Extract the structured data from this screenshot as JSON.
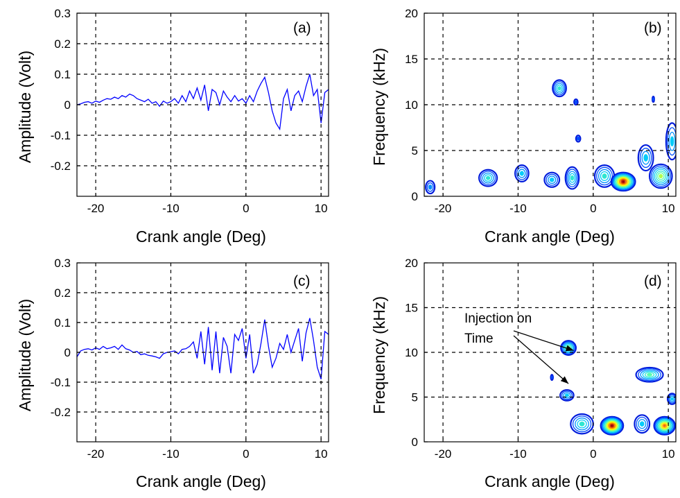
{
  "chart_data": [
    {
      "panel_label": "(a)",
      "type": "line",
      "xlabel": "Crank angle (Deg)",
      "ylabel": "Amplitude (Volt)",
      "xlim": [
        -22.5,
        11
      ],
      "ylim": [
        -0.3,
        0.3
      ],
      "x_ticks": [
        -20,
        -10,
        0,
        10
      ],
      "y_ticks": [
        -0.2,
        -0.1,
        0,
        0.1,
        0.2,
        0.3
      ],
      "x_tick_labels": [
        "-20",
        "-10",
        "0",
        "10"
      ],
      "y_tick_labels": [
        "-0.2",
        "-0.1",
        "0",
        "0.1",
        "0.2",
        "0.3"
      ],
      "grid": true,
      "line_color": "#0000ff",
      "series": [
        {
          "x": [
            -22.5,
            -22,
            -21.5,
            -21,
            -20.5,
            -20,
            -19.5,
            -19,
            -18.5,
            -18,
            -17.5,
            -17,
            -16.5,
            -16,
            -15.5,
            -15,
            -14.5,
            -14,
            -13.5,
            -13,
            -12.5,
            -12,
            -11.5,
            -11,
            -10.5,
            -10,
            -9.5,
            -9,
            -8.5,
            -8,
            -7.5,
            -7,
            -6.5,
            -6,
            -5.5,
            -5,
            -4.5,
            -4,
            -3.5,
            -3,
            -2.5,
            -2,
            -1.5,
            -1,
            -0.5,
            0,
            0.5,
            1,
            1.5,
            2,
            2.5,
            3,
            3.5,
            4,
            4.5,
            5,
            5.5,
            6,
            6.5,
            7,
            7.5,
            8,
            8.5,
            9,
            9.5,
            10,
            10.5,
            11
          ],
          "y": [
            0,
            0.003,
            0.008,
            0.01,
            0.005,
            0.012,
            0.008,
            0.015,
            0.02,
            0.018,
            0.025,
            0.02,
            0.03,
            0.025,
            0.035,
            0.03,
            0.02,
            0.015,
            0.01,
            0.018,
            0.005,
            0.01,
            -0.005,
            0.012,
            0.005,
            0.01,
            0.02,
            0.005,
            0.03,
            0.01,
            0.045,
            0.02,
            0.055,
            0.015,
            0.065,
            -0.02,
            0.05,
            0.04,
            0,
            0.045,
            0.025,
            0.01,
            0.03,
            0.012,
            0.02,
            0.005,
            0.03,
            0.01,
            0.045,
            0.07,
            0.09,
            0.04,
            -0.02,
            -0.06,
            -0.08,
            0.02,
            0.05,
            -0.02,
            0.03,
            0.045,
            0.01,
            0.06,
            0.1,
            0.03,
            0.05,
            -0.06,
            0.04,
            0.05
          ]
        }
      ]
    },
    {
      "panel_label": "(b)",
      "type": "heatmap",
      "xlabel": "Crank angle (Deg)",
      "ylabel": "Frequency (kHz)",
      "xlim": [
        -22.5,
        11
      ],
      "ylim": [
        0,
        20
      ],
      "x_ticks": [
        -20,
        -10,
        0,
        10
      ],
      "y_ticks": [
        0,
        5,
        10,
        15,
        20
      ],
      "x_tick_labels": [
        "-20",
        "-10",
        "0",
        "10"
      ],
      "y_tick_labels": [
        "0",
        "5",
        "10",
        "15",
        "20"
      ],
      "grid": true,
      "blobs": [
        {
          "x": 4,
          "y": 1.6,
          "sx": 1.6,
          "sy": 1.0,
          "peak": 1.0
        },
        {
          "x": 9,
          "y": 2.2,
          "sx": 1.5,
          "sy": 1.3,
          "peak": 0.55
        },
        {
          "x": 1.5,
          "y": 2.2,
          "sx": 1.3,
          "sy": 1.2,
          "peak": 0.4
        },
        {
          "x": 7,
          "y": 4.2,
          "sx": 1.0,
          "sy": 1.4,
          "peak": 0.3
        },
        {
          "x": 10.5,
          "y": 6,
          "sx": 0.8,
          "sy": 2.0,
          "peak": 0.3
        },
        {
          "x": -2.8,
          "y": 2,
          "sx": 0.9,
          "sy": 1.2,
          "peak": 0.45
        },
        {
          "x": -5.5,
          "y": 1.8,
          "sx": 1.0,
          "sy": 0.8,
          "peak": 0.32
        },
        {
          "x": -9.5,
          "y": 2.5,
          "sx": 0.9,
          "sy": 0.9,
          "peak": 0.3
        },
        {
          "x": -14,
          "y": 2,
          "sx": 1.2,
          "sy": 0.9,
          "peak": 0.4
        },
        {
          "x": -4.5,
          "y": 11.8,
          "sx": 0.9,
          "sy": 0.9,
          "peak": 0.45
        },
        {
          "x": -2.3,
          "y": 10.3,
          "sx": 0.25,
          "sy": 0.3,
          "peak": 0.2
        },
        {
          "x": -2.0,
          "y": 6.3,
          "sx": 0.3,
          "sy": 0.35,
          "peak": 0.2
        },
        {
          "x": -21.7,
          "y": 1.0,
          "sx": 0.6,
          "sy": 0.7,
          "peak": 0.22
        },
        {
          "x": 8.0,
          "y": 10.6,
          "sx": 0.12,
          "sy": 0.3,
          "peak": 0.17
        }
      ]
    },
    {
      "panel_label": "(c)",
      "type": "line",
      "xlabel": "Crank angle (Deg)",
      "ylabel": "Amplitude (Volt)",
      "xlim": [
        -22.5,
        11
      ],
      "ylim": [
        -0.3,
        0.3
      ],
      "x_ticks": [
        -20,
        -10,
        0,
        10
      ],
      "y_ticks": [
        -0.2,
        -0.1,
        0,
        0.1,
        0.2,
        0.3
      ],
      "x_tick_labels": [
        "-20",
        "-10",
        "0",
        "10"
      ],
      "y_tick_labels": [
        "-0.2",
        "-0.1",
        "0",
        "0.1",
        "0.2",
        "0.3"
      ],
      "grid": true,
      "line_color": "#0000ff",
      "series": [
        {
          "x": [
            -22.5,
            -22,
            -21.5,
            -21,
            -20.5,
            -20,
            -19.5,
            -19,
            -18.5,
            -18,
            -17.5,
            -17,
            -16.5,
            -16,
            -15.5,
            -15,
            -14.5,
            -14,
            -13.5,
            -13,
            -12.5,
            -12,
            -11.5,
            -11,
            -10.5,
            -10,
            -9.5,
            -9,
            -8.5,
            -8,
            -7.5,
            -7,
            -6.5,
            -6,
            -5.5,
            -5,
            -4.5,
            -4,
            -3.5,
            -3,
            -2.5,
            -2,
            -1.5,
            -1,
            -0.5,
            0,
            0.5,
            1,
            1.5,
            2,
            2.5,
            3,
            3.5,
            4,
            4.5,
            5,
            5.5,
            6,
            6.5,
            7,
            7.5,
            8,
            8.5,
            9,
            9.5,
            10,
            10.5,
            11
          ],
          "y": [
            -0.015,
            0.005,
            0.01,
            0.012,
            0.008,
            0.015,
            0.01,
            0.02,
            0.012,
            0.015,
            0.02,
            0.01,
            0.025,
            0.012,
            0.008,
            0,
            0.003,
            -0.008,
            -0.005,
            -0.01,
            -0.012,
            -0.015,
            -0.02,
            -0.005,
            0,
            0.002,
            0.005,
            -0.005,
            0.01,
            0.012,
            0.02,
            0.035,
            -0.02,
            0.07,
            -0.04,
            0.085,
            -0.06,
            0.07,
            -0.07,
            0.05,
            0.02,
            -0.07,
            0.06,
            0.04,
            0.08,
            -0.02,
            0.06,
            -0.07,
            -0.04,
            0.03,
            0.11,
            0.02,
            -0.05,
            -0.02,
            0.03,
            0.01,
            0.06,
            0,
            0.04,
            0.08,
            -0.03,
            0.065,
            0.115,
            0.04,
            -0.05,
            -0.09,
            0.07,
            0.06
          ]
        }
      ]
    },
    {
      "panel_label": "(d)",
      "type": "heatmap",
      "xlabel": "Crank angle (Deg)",
      "ylabel": "Frequency (kHz)",
      "xlim": [
        -22.5,
        11
      ],
      "ylim": [
        0,
        20
      ],
      "x_ticks": [
        -20,
        -10,
        0,
        10
      ],
      "y_ticks": [
        0,
        5,
        10,
        15,
        20
      ],
      "x_tick_labels": [
        "-20",
        "-10",
        "0",
        "10"
      ],
      "y_tick_labels": [
        "0",
        "5",
        "10",
        "15",
        "20"
      ],
      "grid": true,
      "annotation": {
        "lines": [
          "Injection on",
          "Time"
        ]
      },
      "arrow_targets": [
        {
          "x": -2.6,
          "y": 10.2
        },
        {
          "x": -3.3,
          "y": 6.5
        }
      ],
      "blobs": [
        {
          "x": 2.5,
          "y": 1.8,
          "sx": 1.5,
          "sy": 1.0,
          "peak": 1.0
        },
        {
          "x": 9.5,
          "y": 1.8,
          "sx": 1.4,
          "sy": 1.0,
          "peak": 0.8
        },
        {
          "x": -1.5,
          "y": 2.0,
          "sx": 1.5,
          "sy": 1.1,
          "peak": 0.45
        },
        {
          "x": 6.5,
          "y": 2.0,
          "sx": 1.0,
          "sy": 1.0,
          "peak": 0.35
        },
        {
          "x": 7.5,
          "y": 7.5,
          "sx": 1.8,
          "sy": 0.8,
          "peak": 0.5
        },
        {
          "x": -3.3,
          "y": 10.5,
          "sx": 1.0,
          "sy": 0.8,
          "peak": 0.55
        },
        {
          "x": -3.5,
          "y": 5.2,
          "sx": 0.9,
          "sy": 0.6,
          "peak": 0.3
        },
        {
          "x": 10.5,
          "y": 4.8,
          "sx": 0.6,
          "sy": 0.6,
          "peak": 0.3
        },
        {
          "x": -5.5,
          "y": 7.2,
          "sx": 0.15,
          "sy": 0.3,
          "peak": 0.17
        }
      ]
    }
  ]
}
